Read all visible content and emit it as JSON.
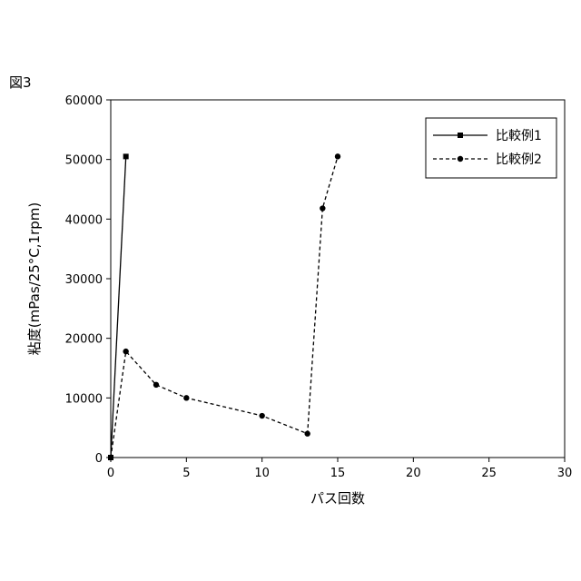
{
  "figure_label": "図3",
  "chart_data": {
    "type": "line",
    "xlabel": "パス回数",
    "ylabel": "粘度(mPas/25°C,1rpm)",
    "xlim": [
      0,
      30
    ],
    "ylim": [
      0,
      60000
    ],
    "x_ticks": [
      0,
      5,
      10,
      15,
      20,
      25,
      30
    ],
    "y_ticks": [
      0,
      10000,
      20000,
      30000,
      40000,
      50000,
      60000
    ],
    "grid": false,
    "legend_position": "top-right",
    "series": [
      {
        "name": "比較例1",
        "line_style": "solid",
        "marker": "square",
        "color": "#000000",
        "x": [
          0,
          1
        ],
        "y": [
          0,
          50500
        ]
      },
      {
        "name": "比較例2",
        "line_style": "dashed",
        "marker": "circle",
        "color": "#000000",
        "x": [
          0,
          1,
          3,
          5,
          10,
          13,
          14,
          15
        ],
        "y": [
          0,
          17800,
          12200,
          10000,
          7000,
          4000,
          41800,
          50500
        ]
      }
    ]
  }
}
